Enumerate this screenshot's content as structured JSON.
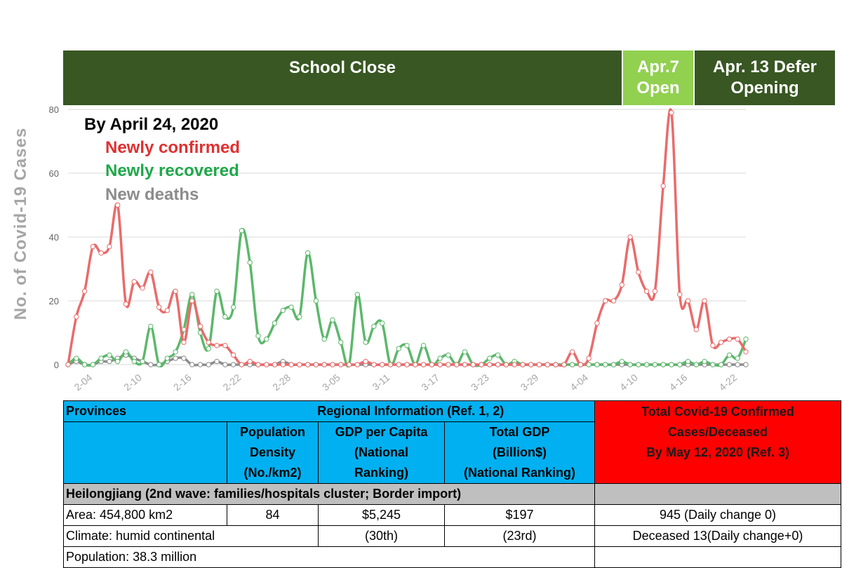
{
  "banners": {
    "school_close": "School Close",
    "apr7_open_1": "Apr.7",
    "apr7_open_2": "Open",
    "defer_1": "Apr. 13 Defer",
    "defer_2": "Opening"
  },
  "colors": {
    "dark_green": "#385723",
    "light_green": "#92d050",
    "confirmed": "#ea6b6b",
    "recovered": "#5cb86b",
    "deaths": "#8c8c8c",
    "table_blue": "#00b0f0",
    "table_red": "#ff0000",
    "table_grey": "#bfbfbf"
  },
  "chart_data": {
    "type": "line",
    "ylabel": "No. of Covid-19 Cases",
    "ylim": [
      0,
      80
    ],
    "yticks": [
      0,
      20,
      40,
      60,
      80
    ],
    "xtick_labels": [
      "2-04",
      "2-10",
      "2-16",
      "2-22",
      "2-28",
      "3-05",
      "3-11",
      "3-17",
      "3-23",
      "3-29",
      "4-04",
      "4-10",
      "4-16",
      "4-22"
    ],
    "x_start": "2020-02-01",
    "x_end": "2020-04-23",
    "grid": true,
    "annotation": "By April 24, 2020",
    "series": [
      {
        "name": "Newly confirmed",
        "color": "#ea6b6b",
        "values": [
          0,
          15,
          23,
          37,
          35,
          37,
          50,
          19,
          26,
          24,
          29,
          18,
          17,
          23,
          7,
          20,
          12,
          7,
          6,
          6,
          3,
          0,
          1,
          0,
          0,
          0,
          0,
          0,
          0,
          0,
          0,
          0,
          0,
          0,
          0,
          0,
          1,
          0,
          0,
          0,
          0,
          0,
          0,
          0,
          0,
          0,
          0,
          0,
          0,
          0,
          0,
          0,
          0,
          0,
          0,
          0,
          0,
          0,
          0,
          0,
          0,
          4,
          0,
          2,
          13,
          20,
          20,
          25,
          40,
          29,
          23,
          23,
          56,
          79,
          22,
          20,
          11,
          20,
          6,
          7,
          8,
          8,
          4
        ]
      },
      {
        "name": "Newly recovered",
        "color": "#5cb86b",
        "values": [
          0,
          2,
          0,
          0,
          2,
          3,
          1,
          4,
          1,
          1,
          12,
          0,
          2,
          4,
          11,
          22,
          10,
          5,
          23,
          15,
          18,
          42,
          32,
          9,
          8,
          13,
          17,
          18,
          15,
          35,
          20,
          8,
          14,
          7,
          0,
          22,
          7,
          12,
          13,
          0,
          5,
          6,
          0,
          6,
          0,
          2,
          3,
          0,
          4,
          0,
          0,
          2,
          3,
          0,
          1,
          0,
          0,
          0,
          0,
          0,
          0,
          0,
          0,
          0,
          0,
          0,
          0,
          1,
          0,
          0,
          0,
          0,
          0,
          0,
          0,
          1,
          0,
          1,
          0,
          0,
          3,
          2,
          8
        ]
      },
      {
        "name": "New deaths",
        "color": "#8c8c8c",
        "values": [
          0,
          1,
          0,
          0,
          1,
          1,
          2,
          3,
          2,
          1,
          0,
          0,
          1,
          2,
          2,
          0,
          0,
          0,
          1,
          0,
          0,
          0,
          0,
          0,
          0,
          0,
          1,
          0,
          0,
          0,
          0,
          0,
          0,
          0,
          0,
          0,
          0,
          0,
          0,
          0,
          0,
          0,
          0,
          0,
          0,
          0,
          0,
          0,
          0,
          0,
          0,
          0,
          0,
          0,
          0,
          0,
          0,
          0,
          0,
          0,
          0,
          0,
          0,
          0,
          0,
          0,
          0,
          0,
          0,
          0,
          0,
          0,
          0,
          0,
          0,
          0,
          0,
          0,
          0,
          0,
          0,
          0,
          0
        ]
      }
    ]
  },
  "table": {
    "h_provinces": "Provinces",
    "h_regional": "Regional Information (Ref. 1, 2)",
    "h_pop_density": [
      "Population",
      "Density",
      "(No./km2)"
    ],
    "h_gdp_capita": [
      "GDP per Capita",
      "(National",
      "Ranking)"
    ],
    "h_total_gdp": [
      "Total GDP",
      "(Billion$)",
      "(National Ranking)"
    ],
    "h_total_cases": [
      "Total Covid-19 Confirmed",
      "Cases/Deceased",
      "By May 12, 2020 (Ref. 3)"
    ],
    "province_row": "Heilongjiang (2nd wave: families/hospitals cluster; Border import)",
    "area": "Area: 454,800 km2",
    "density": "84",
    "gdp_capita": "$5,245",
    "total_gdp": "$197",
    "cases": "945 (Daily change 0)",
    "climate": "Climate: humid continental",
    "gdp_capita_rank": "(30th)",
    "total_gdp_rank": "(23rd)",
    "deceased": "Deceased 13(Daily change+0)",
    "population": "Population: 38.3 million"
  }
}
